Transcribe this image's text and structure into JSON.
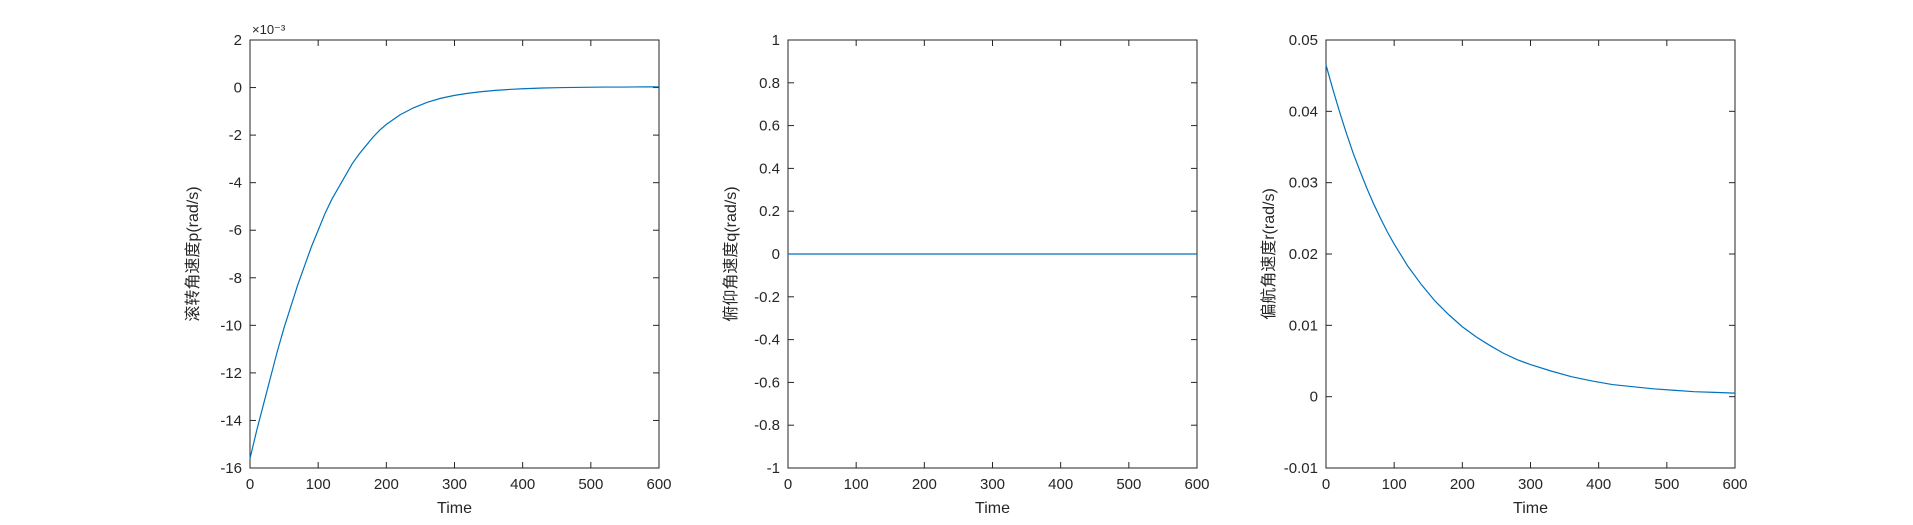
{
  "figure": {
    "background": "#ffffff"
  },
  "chart_data": [
    {
      "type": "line",
      "title": "",
      "xlabel": "Time",
      "ylabel": "滚转角速度p(rad/s)",
      "y_exponent_label": "×10⁻³",
      "xlim": [
        0,
        600
      ],
      "ylim": [
        -16,
        2
      ],
      "xticks": [
        0,
        100,
        200,
        300,
        400,
        500,
        600
      ],
      "yticks": [
        -16,
        -14,
        -12,
        -10,
        -8,
        -6,
        -4,
        -2,
        0,
        2
      ],
      "grid": false,
      "series": [
        {
          "color": "#0072bd",
          "x": [
            0,
            10,
            20,
            30,
            40,
            50,
            60,
            70,
            80,
            90,
            100,
            110,
            120,
            130,
            140,
            150,
            160,
            170,
            180,
            190,
            200,
            220,
            240,
            260,
            280,
            300,
            320,
            340,
            360,
            380,
            400,
            430,
            460,
            490,
            520,
            550,
            580,
            600
          ],
          "y": [
            -15.6,
            -14.4,
            -13.3,
            -12.2,
            -11.1,
            -10.1,
            -9.2,
            -8.3,
            -7.5,
            -6.7,
            -6.0,
            -5.3,
            -4.7,
            -4.2,
            -3.7,
            -3.2,
            -2.8,
            -2.45,
            -2.1,
            -1.8,
            -1.55,
            -1.15,
            -0.85,
            -0.62,
            -0.45,
            -0.33,
            -0.24,
            -0.17,
            -0.12,
            -0.08,
            -0.05,
            -0.02,
            0.0,
            0.01,
            0.02,
            0.02,
            0.03,
            0.03
          ]
        }
      ]
    },
    {
      "type": "line",
      "title": "",
      "xlabel": "Time",
      "ylabel": "俯仰角速度q(rad/s)",
      "xlim": [
        0,
        600
      ],
      "ylim": [
        -1,
        1
      ],
      "xticks": [
        0,
        100,
        200,
        300,
        400,
        500,
        600
      ],
      "yticks": [
        -1,
        -0.8,
        -0.6,
        -0.4,
        -0.2,
        0,
        0.2,
        0.4,
        0.6,
        0.8,
        1
      ],
      "grid": false,
      "series": [
        {
          "color": "#0072bd",
          "x": [
            0,
            600
          ],
          "y": [
            0,
            0
          ]
        }
      ]
    },
    {
      "type": "line",
      "title": "",
      "xlabel": "Time",
      "ylabel": "偏航角速度r(rad/s)",
      "xlim": [
        0,
        600
      ],
      "ylim": [
        -0.01,
        0.05
      ],
      "xticks": [
        0,
        100,
        200,
        300,
        400,
        500,
        600
      ],
      "yticks": [
        -0.01,
        0,
        0.01,
        0.02,
        0.03,
        0.04,
        0.05
      ],
      "grid": false,
      "series": [
        {
          "color": "#0072bd",
          "x": [
            0,
            10,
            20,
            30,
            40,
            50,
            60,
            70,
            80,
            90,
            100,
            120,
            140,
            160,
            180,
            200,
            220,
            240,
            260,
            280,
            300,
            330,
            360,
            390,
            420,
            450,
            480,
            510,
            540,
            570,
            600
          ],
          "y": [
            0.0465,
            0.0431,
            0.0399,
            0.0369,
            0.0341,
            0.0316,
            0.0292,
            0.027,
            0.025,
            0.0231,
            0.0214,
            0.0183,
            0.0157,
            0.0134,
            0.0115,
            0.0098,
            0.0084,
            0.0072,
            0.0061,
            0.0052,
            0.0045,
            0.0036,
            0.0028,
            0.0022,
            0.0017,
            0.0014,
            0.0011,
            0.0009,
            0.0007,
            0.0006,
            0.0005
          ]
        }
      ]
    }
  ]
}
